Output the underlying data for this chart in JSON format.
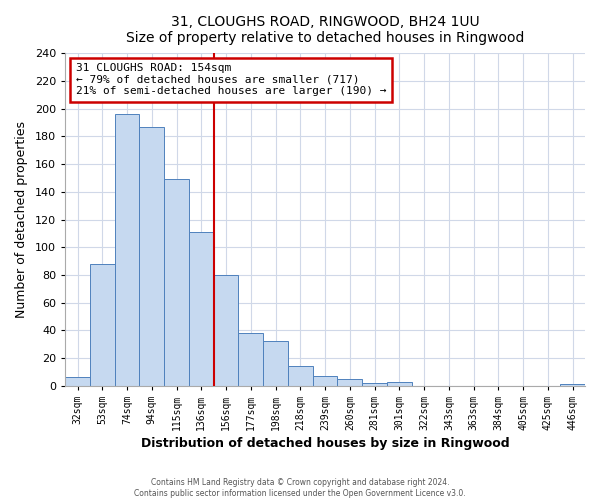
{
  "title": "31, CLOUGHS ROAD, RINGWOOD, BH24 1UU",
  "subtitle": "Size of property relative to detached houses in Ringwood",
  "xlabel": "Distribution of detached houses by size in Ringwood",
  "ylabel": "Number of detached properties",
  "bar_labels": [
    "32sqm",
    "53sqm",
    "74sqm",
    "94sqm",
    "115sqm",
    "136sqm",
    "156sqm",
    "177sqm",
    "198sqm",
    "218sqm",
    "239sqm",
    "260sqm",
    "281sqm",
    "301sqm",
    "322sqm",
    "343sqm",
    "363sqm",
    "384sqm",
    "405sqm",
    "425sqm",
    "446sqm"
  ],
  "bar_values": [
    6,
    88,
    196,
    187,
    149,
    111,
    80,
    38,
    32,
    14,
    7,
    5,
    2,
    3,
    0,
    0,
    0,
    0,
    0,
    0,
    1
  ],
  "bar_color": "#c6d9f0",
  "bar_edge_color": "#4f81bd",
  "property_line_idx": 6,
  "annotation_title": "31 CLOUGHS ROAD: 154sqm",
  "annotation_line1": "← 79% of detached houses are smaller (717)",
  "annotation_line2": "21% of semi-detached houses are larger (190) →",
  "annotation_box_color": "#ffffff",
  "annotation_box_edge": "#cc0000",
  "property_vline_color": "#cc0000",
  "ylim": [
    0,
    240
  ],
  "yticks": [
    0,
    20,
    40,
    60,
    80,
    100,
    120,
    140,
    160,
    180,
    200,
    220,
    240
  ],
  "footer_line1": "Contains HM Land Registry data © Crown copyright and database right 2024.",
  "footer_line2": "Contains public sector information licensed under the Open Government Licence v3.0.",
  "bg_color": "#ffffff",
  "plot_bg_color": "#ffffff",
  "grid_color": "#d0d8e8"
}
